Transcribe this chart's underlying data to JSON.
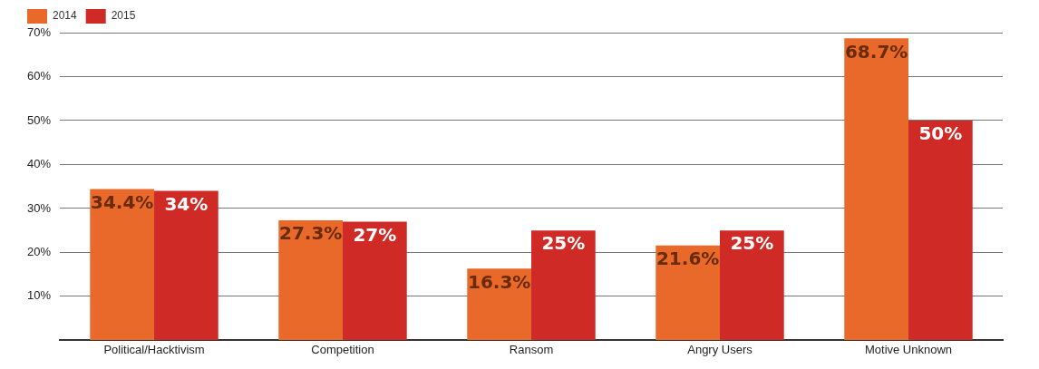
{
  "chart_data": {
    "type": "bar",
    "categories": [
      "Political/Hacktivism",
      "Competition",
      "Ransom",
      "Angry Users",
      "Motive Unknown"
    ],
    "series": [
      {
        "name": "2014",
        "color": "#e8692a",
        "values": [
          34.4,
          27.3,
          16.3,
          21.6,
          68.7
        ],
        "value_labels": [
          "34.4%",
          "27.3%",
          "16.3%",
          "21.6%",
          "68.7%"
        ]
      },
      {
        "name": "2015",
        "color": "#d02a27",
        "values": [
          34,
          27,
          25,
          25,
          50
        ],
        "value_labels": [
          "34%",
          "27%",
          "25%",
          "25%",
          "50%"
        ]
      }
    ],
    "ylim": [
      0,
      70
    ],
    "yticks": [
      {
        "value": 0,
        "label": null
      },
      {
        "value": 10,
        "label": "10%"
      },
      {
        "value": 20,
        "label": "20%"
      },
      {
        "value": 30,
        "label": "30%"
      },
      {
        "value": 40,
        "label": "40%"
      },
      {
        "value": 50,
        "label": "50%"
      },
      {
        "value": 60,
        "label": "60%"
      },
      {
        "value": 70,
        "label": "70%"
      }
    ],
    "grid": "y",
    "legend": "top left"
  }
}
